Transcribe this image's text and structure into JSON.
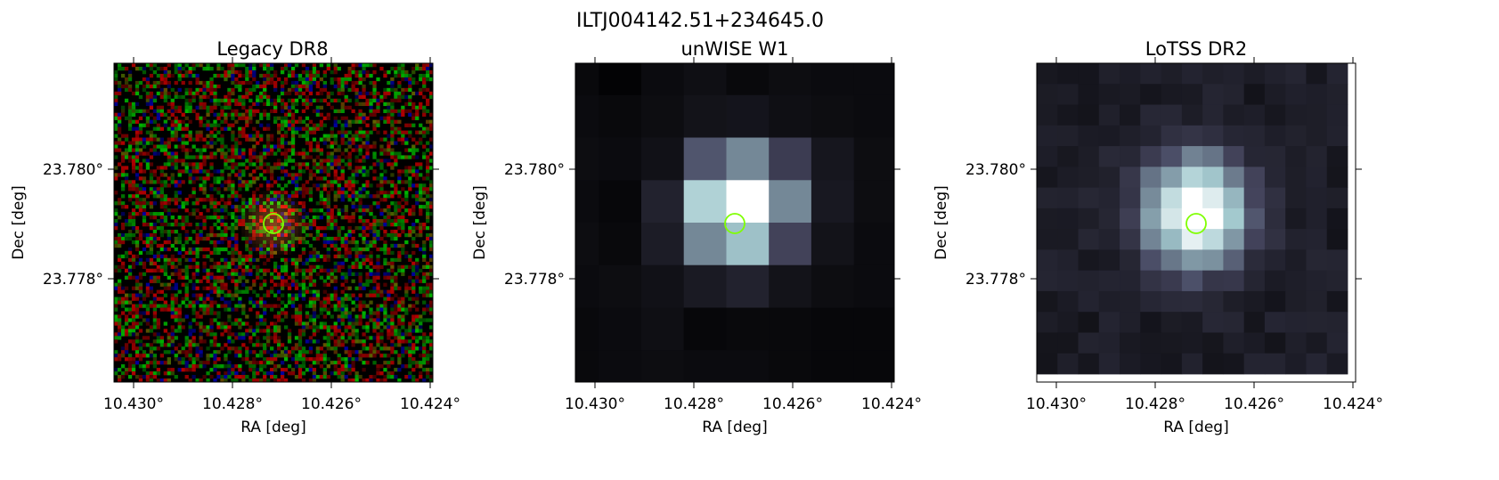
{
  "figure": {
    "title": "ILTJ004142.51+234645.0"
  },
  "panels": [
    {
      "id": "legacy",
      "title": "Legacy DR8",
      "xlabel": "RA [deg]",
      "ylabel": "Dec [deg]",
      "xticks": [
        "10.430°",
        "10.428°",
        "10.426°",
        "10.424°"
      ],
      "yticks": [
        "23.780°",
        "23.778°"
      ],
      "image_style": "rgb-noise"
    },
    {
      "id": "unwise",
      "title": "unWISE W1",
      "xlabel": "RA [deg]",
      "ylabel": "Dec [deg]",
      "xticks": [
        "10.430°",
        "10.428°",
        "10.426°",
        "10.424°"
      ],
      "yticks": [
        "23.780°",
        "23.778°"
      ],
      "image_style": "bone-pixels"
    },
    {
      "id": "lotss",
      "title": "LoTSS DR2",
      "xlabel": "RA [deg]",
      "ylabel": "Dec [deg]",
      "xticks": [
        "10.430°",
        "10.428°",
        "10.426°",
        "10.424°"
      ],
      "yticks": [
        "23.780°",
        "23.778°"
      ],
      "image_style": "bone-pixels"
    }
  ],
  "source_marker": {
    "shape": "circle",
    "color": "#7fff00"
  }
}
